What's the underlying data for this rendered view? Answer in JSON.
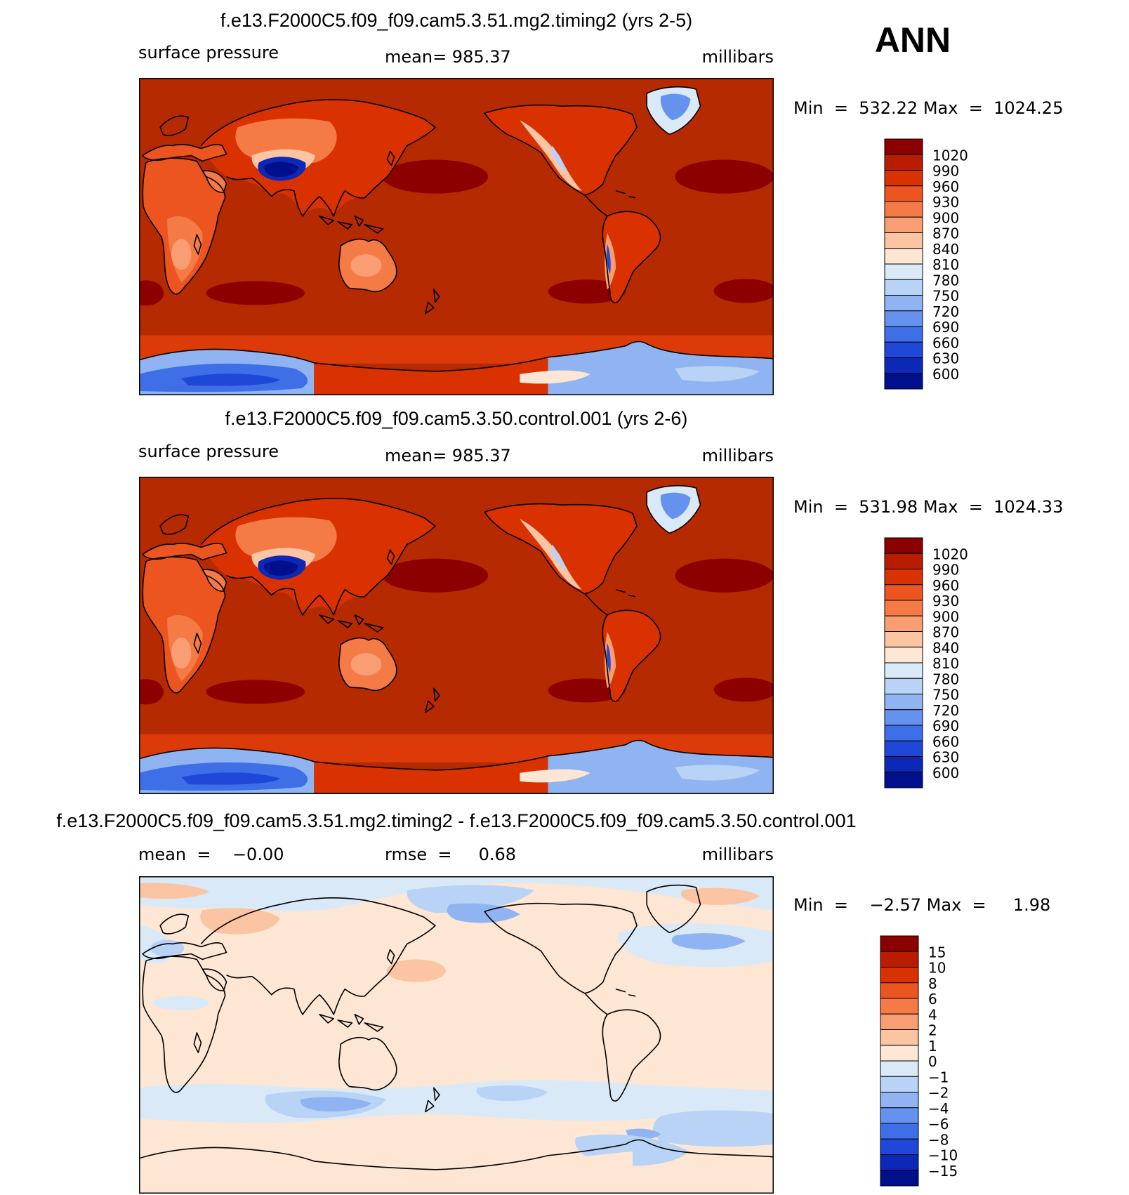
{
  "season": "ANN",
  "colors": {
    "ocean_main": "#b52a00",
    "ocean_south": "#dd3a0a",
    "high_pressure": "#8d0000",
    "coast": "#000000",
    "diff_background": "#fde6d3"
  },
  "panels": [
    {
      "id": "test",
      "title": "f.e13.F2000C5.f09_f09.cam5.3.51.mg2.timing2 (yrs 2-5)",
      "left_label": "surface  pressure",
      "center_label": "mean=  985.37",
      "units": "millibars",
      "min_label": "Min",
      "min_value": "532.22",
      "max_label": "Max",
      "max_value": "1024.25",
      "colorbar": {
        "levels": [
          "1020",
          "990",
          "960",
          "930",
          "900",
          "870",
          "840",
          "810",
          "780",
          "750",
          "720",
          "690",
          "660",
          "630",
          "600"
        ],
        "colors": [
          "#8b0000",
          "#b81d00",
          "#d93200",
          "#ec5520",
          "#f47b45",
          "#f99e72",
          "#fbc4a3",
          "#fde6d3",
          "#d9e9f8",
          "#b8d3f6",
          "#8fb4f1",
          "#6592ee",
          "#3f6fe6",
          "#2048d8",
          "#0c28b7",
          "#00108c"
        ]
      }
    },
    {
      "id": "control",
      "title": "f.e13.F2000C5.f09_f09.cam5.3.50.control.001 (yrs 2-6)",
      "left_label": "surface  pressure",
      "center_label": "mean=  985.37",
      "units": "millibars",
      "min_label": "Min",
      "min_value": "531.98",
      "max_label": "Max",
      "max_value": "1024.33",
      "colorbar": {
        "levels": [
          "1020",
          "990",
          "960",
          "930",
          "900",
          "870",
          "840",
          "810",
          "780",
          "750",
          "720",
          "690",
          "660",
          "630",
          "600"
        ],
        "colors": [
          "#8b0000",
          "#b81d00",
          "#d93200",
          "#ec5520",
          "#f47b45",
          "#f99e72",
          "#fbc4a3",
          "#fde6d3",
          "#d9e9f8",
          "#b8d3f6",
          "#8fb4f1",
          "#6592ee",
          "#3f6fe6",
          "#2048d8",
          "#0c28b7",
          "#00108c"
        ]
      }
    },
    {
      "id": "diff",
      "title": "f.e13.F2000C5.f09_f09.cam5.3.51.mg2.timing2 - f.e13.F2000C5.f09_f09.cam5.3.50.control.001",
      "left_label": "mean  =    −0.00",
      "center_label": "rmse  =     0.68",
      "units": "millibars",
      "min_label": "Min",
      "min_value": "−2.57",
      "max_label": "Max",
      "max_value": "1.98",
      "colorbar": {
        "levels": [
          "15",
          "10",
          "8",
          "6",
          "4",
          "2",
          "1",
          "0",
          "−1",
          "−2",
          "−4",
          "−6",
          "−8",
          "−10",
          "−15"
        ],
        "colors": [
          "#8b0000",
          "#b81d00",
          "#d93200",
          "#ec5520",
          "#f47b45",
          "#f99e72",
          "#fbc4a3",
          "#fde6d3",
          "#d9e9f8",
          "#b8d3f6",
          "#8fb4f1",
          "#6592ee",
          "#3f6fe6",
          "#2048d8",
          "#0c28b7",
          "#00108c"
        ]
      }
    }
  ]
}
